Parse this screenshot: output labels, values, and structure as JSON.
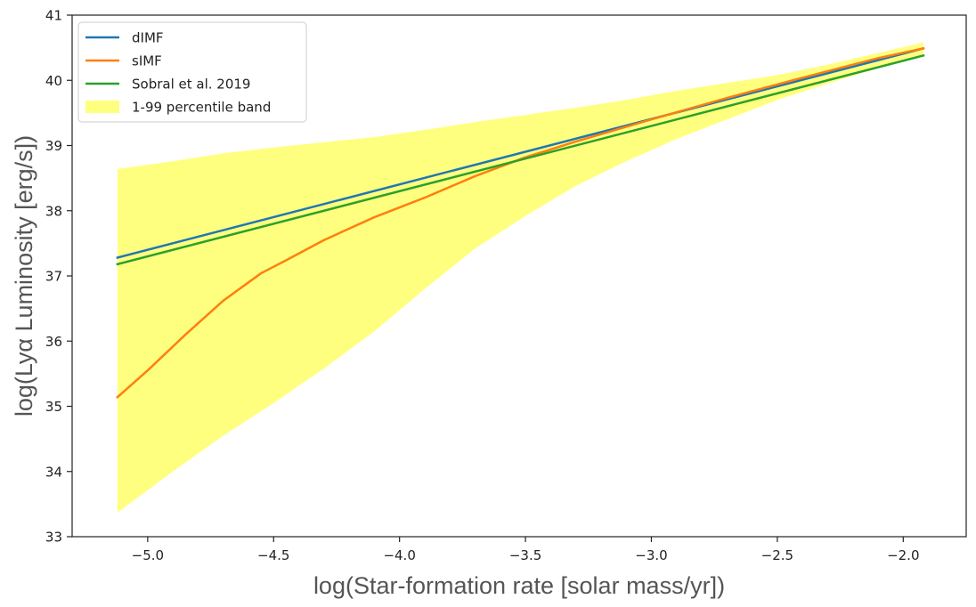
{
  "chart_data": {
    "type": "line",
    "title": "",
    "xlabel": "log(Star-formation rate [solar mass/yr])",
    "ylabel": "log(Lyα Luminosity [erg/s])",
    "xlim": [
      -5.3,
      -1.75
    ],
    "ylim": [
      33,
      41
    ],
    "xticks": [
      -5.0,
      -4.5,
      -4.0,
      -3.5,
      -3.0,
      -2.5,
      -2.0
    ],
    "xtick_labels": [
      "−5.0",
      "−4.5",
      "−4.0",
      "−3.5",
      "−3.0",
      "−2.5",
      "−2.0"
    ],
    "yticks": [
      33,
      34,
      35,
      36,
      37,
      38,
      39,
      40,
      41
    ],
    "ytick_labels": [
      "33",
      "34",
      "35",
      "36",
      "37",
      "38",
      "39",
      "40",
      "41"
    ],
    "grid": false,
    "legend_position": "top-left",
    "series": [
      {
        "name": "dIMF",
        "color": "#1f77b4",
        "x": [
          -5.12,
          -1.92
        ],
        "y": [
          37.28,
          40.49
        ]
      },
      {
        "name": "sIMF",
        "color": "#ff7f0e",
        "x": [
          -5.12,
          -5.0,
          -4.85,
          -4.7,
          -4.55,
          -4.45,
          -4.3,
          -4.1,
          -3.9,
          -3.7,
          -3.5,
          -3.3,
          -3.0,
          -2.7,
          -2.4,
          -2.1,
          -1.92
        ],
        "y": [
          35.14,
          35.55,
          36.1,
          36.62,
          37.04,
          37.24,
          37.55,
          37.9,
          38.2,
          38.53,
          38.82,
          39.06,
          39.4,
          39.73,
          40.04,
          40.34,
          40.49
        ]
      },
      {
        "name": "Sobral et al. 2019",
        "color": "#2ca02c",
        "x": [
          -5.12,
          -1.92
        ],
        "y": [
          37.18,
          40.38
        ]
      }
    ],
    "band": {
      "name": "1-99 percentile band",
      "color": "#ffff7f",
      "x": [
        -5.12,
        -4.9,
        -4.7,
        -4.5,
        -4.3,
        -4.1,
        -3.9,
        -3.7,
        -3.5,
        -3.3,
        -3.1,
        -2.9,
        -2.7,
        -2.5,
        -2.3,
        -2.1,
        -1.92
      ],
      "upper": [
        38.64,
        38.76,
        38.88,
        38.97,
        39.05,
        39.13,
        39.24,
        39.36,
        39.47,
        39.58,
        39.7,
        39.84,
        39.96,
        40.08,
        40.24,
        40.42,
        40.58
      ],
      "lower": [
        33.37,
        34.0,
        34.55,
        35.05,
        35.58,
        36.15,
        36.8,
        37.42,
        37.92,
        38.38,
        38.76,
        39.1,
        39.4,
        39.7,
        39.95,
        40.19,
        40.37
      ]
    }
  }
}
